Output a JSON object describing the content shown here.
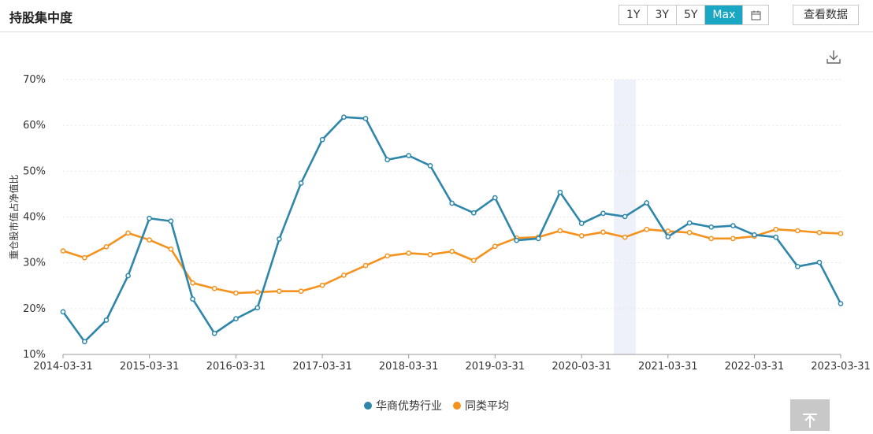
{
  "header": {
    "title": "持股集中度",
    "ranges": [
      {
        "label": "1Y",
        "active": false
      },
      {
        "label": "3Y",
        "active": false
      },
      {
        "label": "5Y",
        "active": false
      },
      {
        "label": "Max",
        "active": true
      }
    ],
    "calendar_icon": "calendar-icon",
    "view_data_label": "查看数据"
  },
  "toolbar": {
    "download_icon": "download-icon"
  },
  "back_to_top_icon": "arrow-up-icon",
  "colors": {
    "series1": "#2e86ab",
    "series2": "#f5921e",
    "accent": "#1aa7c4",
    "highlight": "#eef1fa"
  },
  "chart_data": {
    "type": "line",
    "ylabel": "重仓股市值占净值比",
    "ylim": [
      10,
      70
    ],
    "yticks": [
      "10%",
      "20%",
      "30%",
      "40%",
      "50%",
      "60%",
      "70%"
    ],
    "xticks": [
      "2014-03-31",
      "2015-03-31",
      "2016-03-31",
      "2017-03-31",
      "2018-03-31",
      "2019-03-31",
      "2020-03-31",
      "2021-03-31",
      "2022-03-31",
      "2023-03-31"
    ],
    "x": [
      "2014-03-31",
      "2014-06-30",
      "2014-09-30",
      "2014-12-31",
      "2015-03-31",
      "2015-06-30",
      "2015-09-30",
      "2015-12-31",
      "2016-03-31",
      "2016-06-30",
      "2016-09-30",
      "2016-12-31",
      "2017-03-31",
      "2017-06-30",
      "2017-09-30",
      "2017-12-31",
      "2018-03-31",
      "2018-06-30",
      "2018-09-30",
      "2018-12-31",
      "2019-03-31",
      "2019-06-30",
      "2019-09-30",
      "2019-12-31",
      "2020-03-31",
      "2020-06-30",
      "2020-09-30",
      "2020-12-31",
      "2021-03-31",
      "2021-06-30",
      "2021-09-30",
      "2021-12-31",
      "2022-03-31",
      "2022-06-30",
      "2022-09-30",
      "2022-12-31",
      "2023-03-31"
    ],
    "highlight_x": "2020-09-30",
    "grid": true,
    "legend_position": "bottom-center",
    "series": [
      {
        "name": "华商优势行业",
        "values": [
          19.3,
          12.8,
          17.5,
          27.2,
          39.7,
          39.1,
          22.1,
          14.6,
          17.8,
          20.2,
          35.2,
          47.4,
          56.9,
          61.8,
          61.5,
          52.5,
          53.4,
          51.2,
          43.0,
          40.9,
          44.2,
          34.9,
          35.3,
          45.4,
          38.6,
          40.8,
          40.1,
          43.1,
          35.7,
          38.7,
          37.8,
          38.1,
          36.1,
          35.6,
          29.2,
          30.1,
          21.1
        ]
      },
      {
        "name": "同类平均",
        "values": [
          32.6,
          31.1,
          33.5,
          36.5,
          35.0,
          33.0,
          25.6,
          24.4,
          23.4,
          23.6,
          23.8,
          23.8,
          25.1,
          27.3,
          29.4,
          31.5,
          32.1,
          31.8,
          32.5,
          30.5,
          33.6,
          35.4,
          35.6,
          37.0,
          35.9,
          36.7,
          35.6,
          37.3,
          36.9,
          36.6,
          35.3,
          35.3,
          35.8,
          37.3,
          37.0,
          36.6,
          36.4
        ]
      }
    ]
  }
}
